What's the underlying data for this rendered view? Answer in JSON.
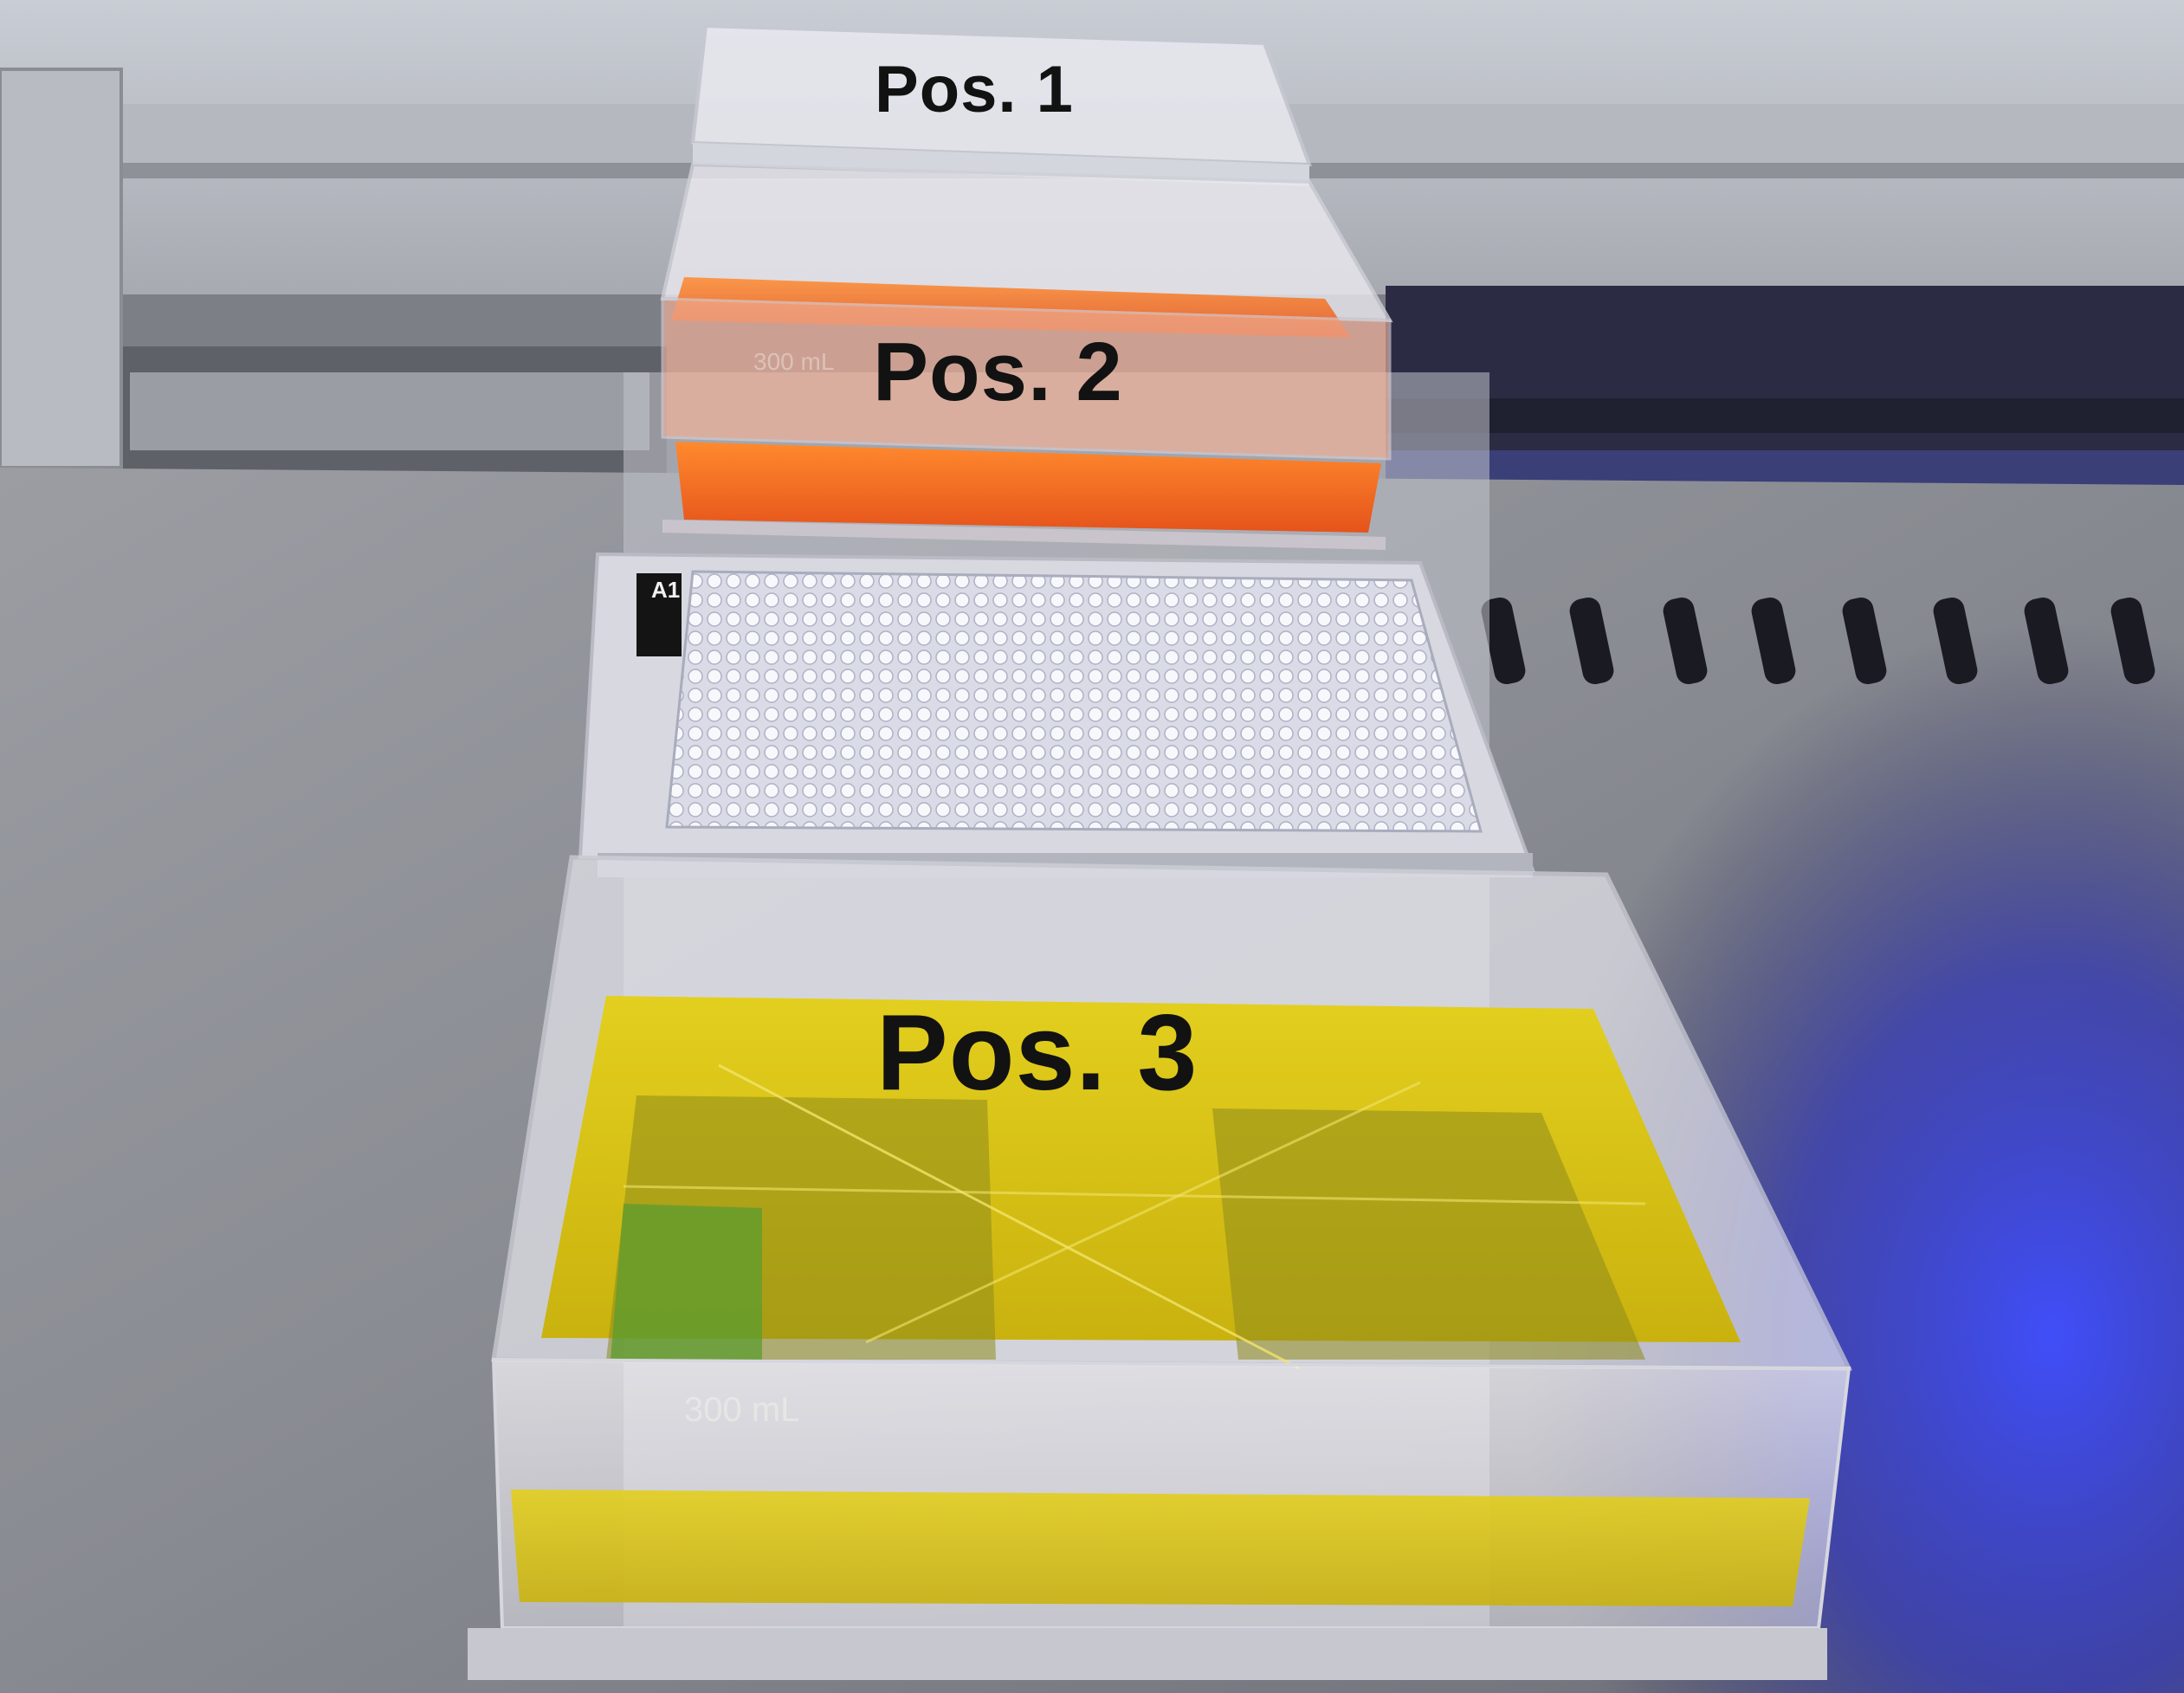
{
  "labels": {
    "pos1": "Pos. 1",
    "pos2": "Pos. 2",
    "pos3": "Pos. 3"
  },
  "markings": {
    "plate_corner": "A1",
    "reservoir3_volume": "300 mL",
    "reservoir2_volume": "300 mL"
  },
  "colors": {
    "reservoir2_liquid": "#f26a22",
    "reservoir3_liquid": "#d8c51a",
    "deck_light": "#3a46ff",
    "deck_metal": "#8c8e95"
  },
  "plate": {
    "rows": 16,
    "columns": 24
  }
}
